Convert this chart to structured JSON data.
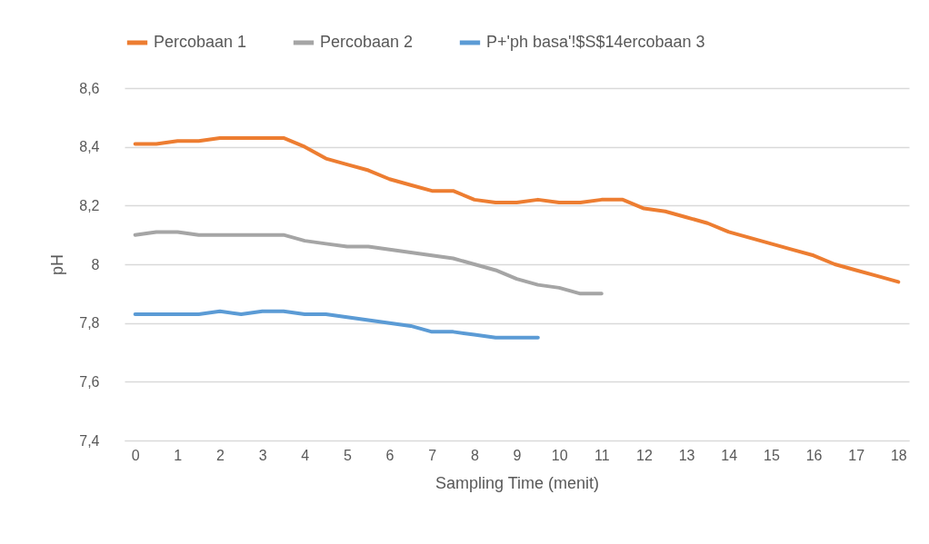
{
  "chart_data": {
    "type": "line",
    "xlabel": "Sampling Time (menit)",
    "ylabel": "pH",
    "xlim": [
      -0.25,
      18.25
    ],
    "xticks": [
      0,
      1,
      2,
      3,
      4,
      5,
      6,
      7,
      8,
      9,
      10,
      11,
      12,
      13,
      14,
      15,
      16,
      17,
      18
    ],
    "ylim": [
      7.4,
      8.6
    ],
    "yticks": [
      {
        "value": 7.4,
        "label": "7,4"
      },
      {
        "value": 7.6,
        "label": "7,6"
      },
      {
        "value": 7.8,
        "label": "7,8"
      },
      {
        "value": 8,
        "label": "8"
      },
      {
        "value": 8.2,
        "label": "8,2"
      },
      {
        "value": 8.4,
        "label": "8,4"
      },
      {
        "value": 8.6,
        "label": "8,6"
      }
    ],
    "grid": "y",
    "legend": "top",
    "marker": "none",
    "line_style": "solid",
    "series": [
      {
        "name": "Percobaan 1",
        "color": "#ed7d31",
        "x": [
          0,
          0.5,
          1,
          1.5,
          2,
          2.5,
          3,
          3.5,
          4,
          4.5,
          5,
          5.5,
          6,
          6.5,
          7,
          7.5,
          8,
          8.5,
          9,
          9.5,
          10,
          10.5,
          11,
          11.5,
          12,
          12.5,
          13,
          13.5,
          14,
          14.5,
          15,
          15.5,
          16,
          16.5,
          17,
          17.5,
          18
        ],
        "values": [
          8.41,
          8.41,
          8.42,
          8.42,
          8.43,
          8.43,
          8.43,
          8.43,
          8.4,
          8.36,
          8.34,
          8.32,
          8.29,
          8.27,
          8.25,
          8.25,
          8.22,
          8.21,
          8.21,
          8.22,
          8.21,
          8.21,
          8.22,
          8.22,
          8.19,
          8.18,
          8.16,
          8.14,
          8.11,
          8.09,
          8.07,
          8.05,
          8.03,
          8.0,
          7.98,
          7.96,
          7.94
        ]
      },
      {
        "name": "Percobaan 2",
        "color": "#a5a5a5",
        "x": [
          0,
          0.5,
          1,
          1.5,
          2,
          2.5,
          3,
          3.5,
          4,
          4.5,
          5,
          5.5,
          6,
          6.5,
          7,
          7.5,
          8,
          8.5,
          9,
          9.5,
          10,
          10.5,
          11
        ],
        "values": [
          8.1,
          8.11,
          8.11,
          8.1,
          8.1,
          8.1,
          8.1,
          8.1,
          8.08,
          8.07,
          8.06,
          8.06,
          8.05,
          8.04,
          8.03,
          8.02,
          8.0,
          7.98,
          7.95,
          7.93,
          7.92,
          7.9,
          7.9
        ]
      },
      {
        "name": "P+'ph basa'!$S$14ercobaan 3",
        "color": "#5b9bd5",
        "x": [
          0,
          0.5,
          1,
          1.5,
          2,
          2.5,
          3,
          3.5,
          4,
          4.5,
          5,
          5.5,
          6,
          6.5,
          7,
          7.5,
          8,
          8.5,
          9,
          9.5
        ],
        "values": [
          7.83,
          7.83,
          7.83,
          7.83,
          7.84,
          7.83,
          7.84,
          7.84,
          7.83,
          7.83,
          7.82,
          7.81,
          7.8,
          7.79,
          7.77,
          7.77,
          7.76,
          7.75,
          7.75,
          7.75
        ]
      }
    ]
  }
}
